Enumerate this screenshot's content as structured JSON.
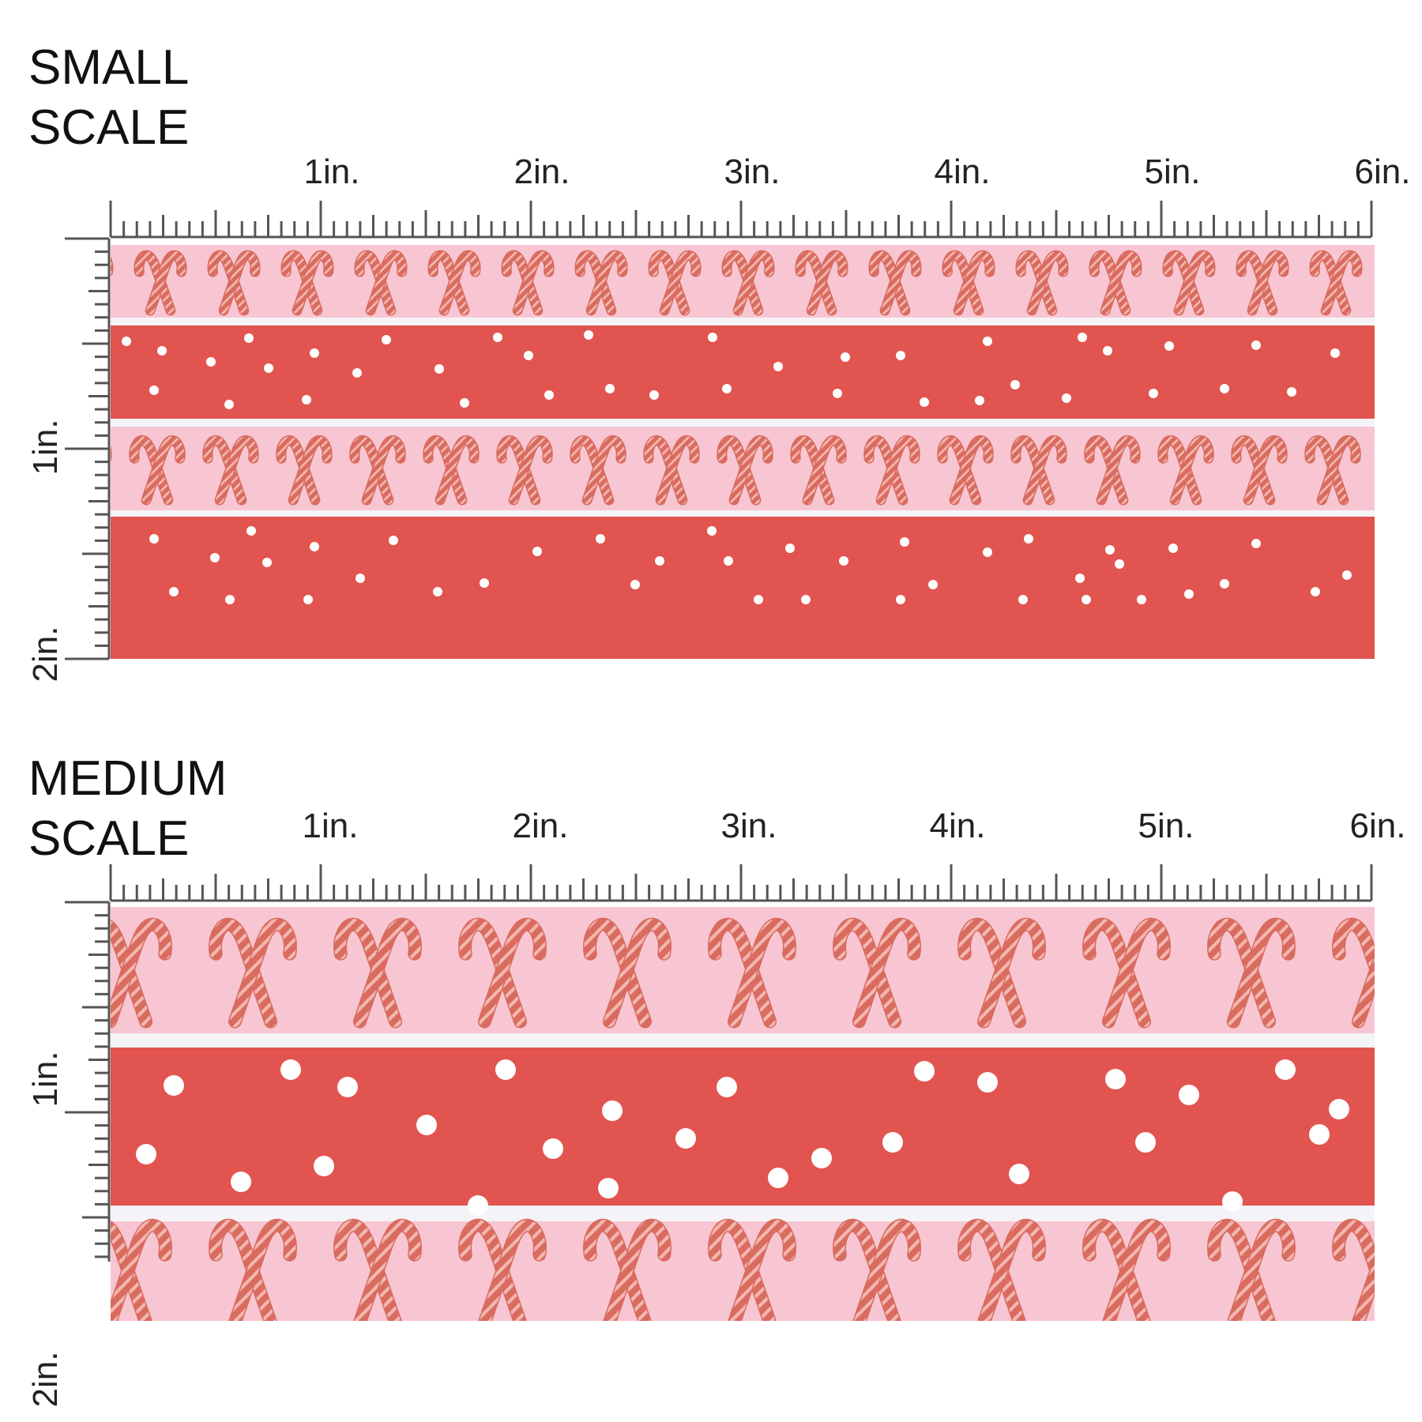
{
  "scales": [
    {
      "id": "small",
      "title_line1": "SMALL",
      "title_line2": "SCALE",
      "horizontal_labels": [
        "1in.",
        "2in.",
        "3in.",
        "4in.",
        "5in.",
        "6in."
      ],
      "vertical_labels": [
        "1in.",
        "2in."
      ]
    },
    {
      "id": "medium",
      "title_line1": "MEDIUM",
      "title_line2": "SCALE",
      "horizontal_labels": [
        "1in.",
        "2in.",
        "3in.",
        "4in.",
        "5in.",
        "6in."
      ],
      "vertical_labels": [
        "1in.",
        "2in."
      ]
    }
  ],
  "colors": {
    "pink_band": "#f7c6d2",
    "red_band": "#e2544f",
    "gap": "#f4f4f8",
    "candy_cane": "#d96b5f",
    "dot": "#ffffff",
    "ruler": "#555555"
  },
  "motifs": {
    "pink_band": "crossed-candy-canes",
    "red_band": "white-polka-dots"
  }
}
